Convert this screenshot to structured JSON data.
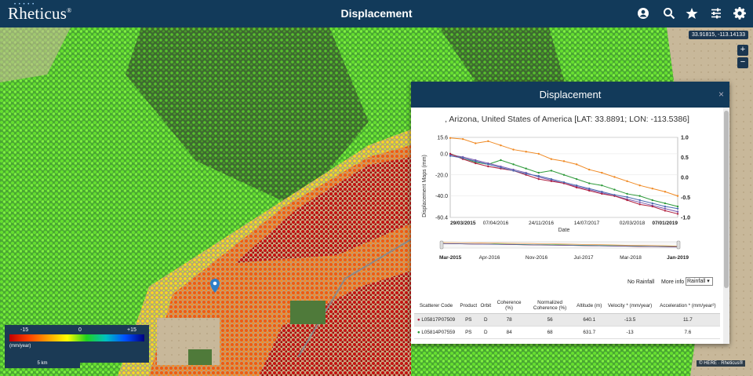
{
  "header": {
    "logo": "Rheticus",
    "logo_mark": "®",
    "title": "Displacement",
    "icons": [
      "user-circle-icon",
      "search-icon",
      "star-icon",
      "sliders-icon",
      "gear-icon"
    ]
  },
  "map": {
    "coords": "33.91815, -113.14133",
    "zoom_in": "+",
    "zoom_out": "−",
    "attribution": "© HERE · Rheticus®",
    "scale": "5 km"
  },
  "legend": {
    "min": "-15",
    "mid": "0",
    "max": "+15",
    "unit": "(mm/year)"
  },
  "popup": {
    "title": "Displacement",
    "close": "×",
    "location": ", Arizona, United States of America [LAT: 33.8891; LON: -113.5386]",
    "no_rainfall": "No Rainfall",
    "more_info": "More info",
    "rain_select": "Rainfall"
  },
  "chart_data": {
    "type": "line",
    "ylabel": "Displacement Maps (mm)",
    "xlabel": "Date",
    "y_ticks": [
      "15.6",
      "0.0",
      "-20.0",
      "-40.0",
      "-60.4"
    ],
    "y_range": [
      -60.4,
      15.6
    ],
    "y2_ticks": [
      "1.0",
      "0.5",
      "0.0",
      "-0.5",
      "-1.0"
    ],
    "x_ticks": [
      "29/03/2015",
      "07/04/2016",
      "24/11/2016",
      "14/07/2017",
      "02/03/2018",
      "07/01/2019"
    ],
    "navigator_ticks": [
      "Mar-2015",
      "Apr-2016",
      "Nov-2016",
      "Jul-2017",
      "Mar-2018",
      "Jan-2019"
    ],
    "series": [
      {
        "color": "#f08a24",
        "values": [
          15,
          14,
          10,
          12,
          8,
          4,
          2,
          0,
          -5,
          -7,
          -10,
          -15,
          -18,
          -22,
          -26,
          -30,
          -33,
          -36,
          -40
        ]
      },
      {
        "color": "#2e9a3a",
        "values": [
          0,
          -4,
          -8,
          -10,
          -6,
          -10,
          -14,
          -18,
          -16,
          -20,
          -24,
          -28,
          -30,
          -34,
          -38,
          -40,
          -44,
          -47,
          -50
        ]
      },
      {
        "color": "#7a5bb0",
        "values": [
          -1,
          -3,
          -6,
          -9,
          -12,
          -15,
          -18,
          -22,
          -25,
          -28,
          -31,
          -34,
          -37,
          -40,
          -43,
          -46,
          -49,
          -52,
          -55
        ]
      },
      {
        "color": "#b02040",
        "values": [
          0,
          -5,
          -9,
          -12,
          -14,
          -16,
          -20,
          -24,
          -26,
          -28,
          -32,
          -35,
          -38,
          -40,
          -44,
          -48,
          -50,
          -54,
          -57
        ]
      },
      {
        "color": "#4a6ab0",
        "values": [
          -2,
          -4,
          -7,
          -10,
          -13,
          -16,
          -19,
          -21,
          -24,
          -27,
          -30,
          -33,
          -36,
          -39,
          -41,
          -44,
          -47,
          -50,
          -52
        ]
      }
    ]
  },
  "table": {
    "headers": [
      "Scatterer Code",
      "Product",
      "Orbit",
      "Coherence (%)",
      "Normalized Coherence (%)",
      "Altitude (m)",
      "Velocity * (mm/year)",
      "Acceleration * (mm/year²)"
    ],
    "rows": [
      {
        "bullet": "●",
        "code": "L05817P07509",
        "product": "PS",
        "orbit": "D",
        "coherence": "78",
        "norm_coherence": "56",
        "altitude": "640.1",
        "velocity": "-13.5",
        "acceleration": "11.7"
      },
      {
        "bullet": "●",
        "code": "L05814P07559",
        "product": "PS",
        "orbit": "D",
        "coherence": "84",
        "norm_coherence": "68",
        "altitude": "631.7",
        "velocity": "-13",
        "acceleration": "7.6"
      }
    ]
  }
}
